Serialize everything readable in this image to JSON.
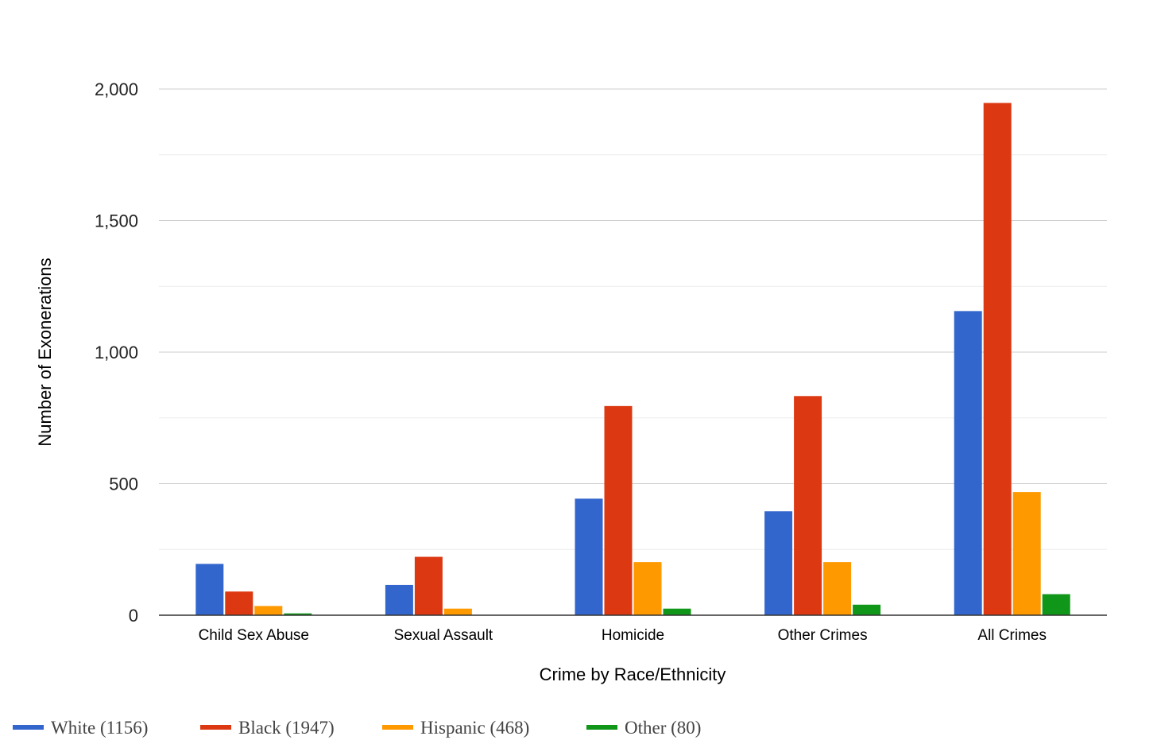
{
  "chart_data": {
    "type": "bar",
    "title": "",
    "xlabel": "Crime by Race/Ethnicity",
    "ylabel": "Number of Exonerations",
    "categories": [
      "Child Sex Abuse",
      "Sexual Assault",
      "Homicide",
      "Other Crimes",
      "All Crimes"
    ],
    "series": [
      {
        "name": "White (1156)",
        "color": "#3366cc",
        "values": [
          195,
          115,
          443,
          395,
          1156
        ]
      },
      {
        "name": "Black (1947)",
        "color": "#dc3912",
        "values": [
          90,
          222,
          795,
          833,
          1947
        ]
      },
      {
        "name": "Hispanic (468)",
        "color": "#ff9900",
        "values": [
          35,
          25,
          202,
          202,
          468
        ]
      },
      {
        "name": "Other (80)",
        "color": "#109618",
        "values": [
          7,
          0,
          25,
          40,
          80
        ]
      }
    ],
    "ylim": [
      0,
      2000
    ],
    "yticks": [
      0,
      500,
      1000,
      1500,
      2000
    ],
    "ytick_labels": [
      "0",
      "500",
      "1,000",
      "1,500",
      "2,000"
    ],
    "grid": true,
    "legend_position": "bottom"
  }
}
